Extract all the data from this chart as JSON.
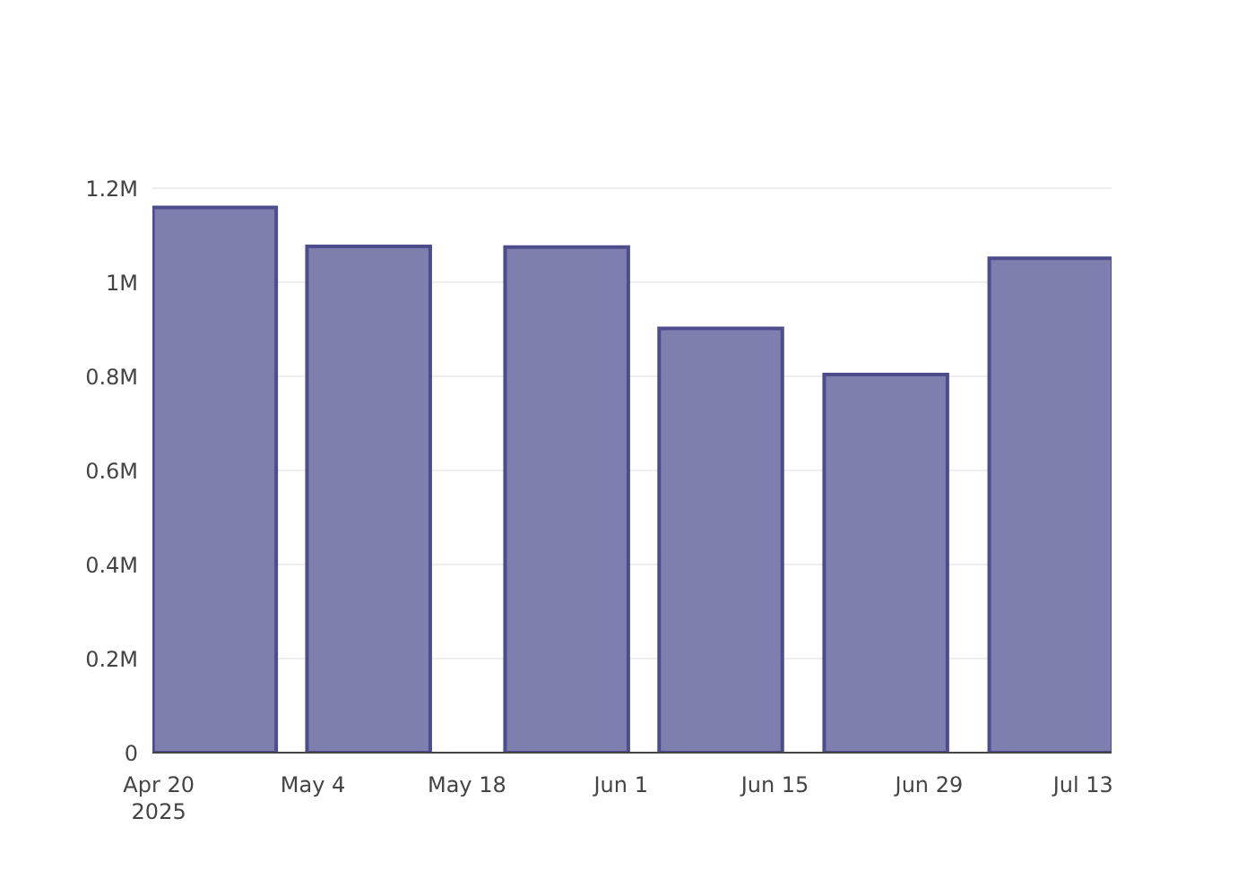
{
  "chart_data": {
    "type": "bar",
    "x": [
      "2025-04-25",
      "2025-05-09",
      "2025-05-27",
      "2025-06-10",
      "2025-06-25",
      "2025-07-10"
    ],
    "values": [
      1159000,
      1076000,
      1075000,
      902000,
      804000,
      1051000
    ],
    "color": "#7f7faf",
    "xlim": [
      "2025-04-19T10:00",
      "2025-07-15T14:00"
    ],
    "xticks": [
      {
        "value": "2025-04-20",
        "label": "Apr 20\n2025"
      },
      {
        "value": "2025-05-04",
        "label": "May 4"
      },
      {
        "value": "2025-05-18",
        "label": "May 18"
      },
      {
        "value": "2025-06-01",
        "label": "Jun 1"
      },
      {
        "value": "2025-06-15",
        "label": "Jun 15"
      },
      {
        "value": "2025-06-29",
        "label": "Jun 29"
      },
      {
        "value": "2025-07-13",
        "label": "Jul 13"
      }
    ],
    "ylim": [
      0,
      1200000
    ],
    "yticks": [
      0,
      {
        "value": 200000,
        "label": "0.2M"
      },
      {
        "value": 400000,
        "label": "0.4M"
      },
      {
        "value": 600000,
        "label": "0.6M"
      },
      {
        "value": 800000,
        "label": "0.8M"
      },
      {
        "value": 1000000,
        "label": "1M"
      },
      {
        "value": 1200000,
        "label": "1.2M"
      }
    ],
    "grid": "y"
  }
}
